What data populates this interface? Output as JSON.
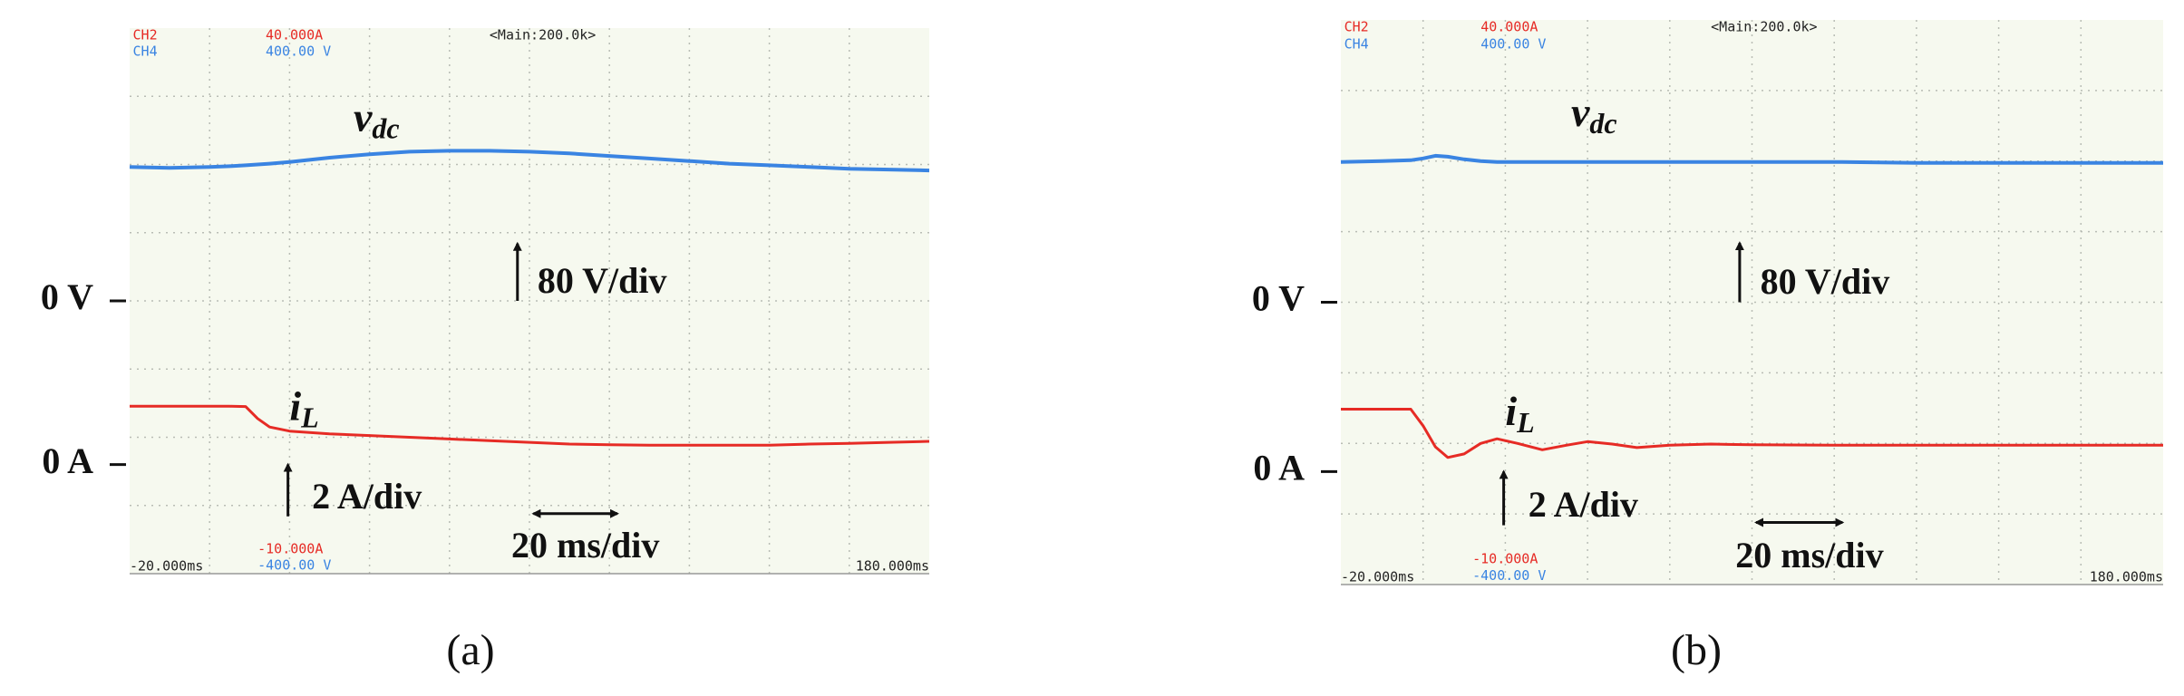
{
  "chart_data": [
    {
      "type": "line",
      "panel_label": "(a)",
      "header": {
        "ch2": "CH2",
        "ch2_scale": "40.000A",
        "ch4": "CH4",
        "ch4_scale": "400.00 V",
        "timebase": "<Main:200.0k>",
        "ch2_bottom": "-10.000A",
        "ch4_bottom": "-400.00 V"
      },
      "x": [
        -20,
        -10,
        0,
        5,
        9,
        12,
        15,
        20,
        30,
        40,
        50,
        60,
        70,
        80,
        90,
        100,
        110,
        120,
        130,
        140,
        150,
        160,
        170,
        180
      ],
      "xlim": [
        -20,
        180
      ],
      "xticks": [
        {
          "value": -20,
          "label": "-20.000ms"
        },
        {
          "value": 180,
          "label": "180.000ms"
        }
      ],
      "ylim": [
        -320,
        320
      ],
      "yticks": [
        {
          "value": 0,
          "label": "0 V"
        }
      ],
      "y2lim": [
        -3.2,
        12.8
      ],
      "y2ticks": [
        {
          "value": 0,
          "label": "0 A"
        }
      ],
      "series": [
        {
          "name": "v",
          "subscript": "dc",
          "color": "#3a84e2",
          "values": [
            157,
            156,
            157,
            158,
            159,
            160,
            161,
            163,
            168,
            172,
            175,
            176,
            176,
            175,
            173,
            170,
            167,
            164,
            161,
            159,
            157,
            155,
            154,
            153
          ]
        },
        {
          "name": "i",
          "subscript": "L",
          "color": "#e62b25",
          "axis": "y2",
          "values": [
            1.71,
            1.71,
            1.71,
            1.71,
            1.7,
            1.35,
            1.1,
            0.98,
            0.9,
            0.85,
            0.8,
            0.75,
            0.7,
            0.65,
            0.6,
            0.58,
            0.57,
            0.57,
            0.57,
            0.57,
            0.6,
            0.62,
            0.65,
            0.68
          ]
        }
      ],
      "annotations": [
        "80 V/div",
        "2 A/div",
        "20 ms/div"
      ]
    },
    {
      "type": "line",
      "panel_label": "(b)",
      "header": {
        "ch2": "CH2",
        "ch2_scale": "40.000A",
        "ch4": "CH4",
        "ch4_scale": "400.00 V",
        "timebase": "<Main:200.0k>",
        "ch2_bottom": "-10.000A",
        "ch4_bottom": "-400.00 V"
      },
      "x": [
        -20,
        -10,
        -3,
        0,
        3,
        6,
        10,
        14,
        18,
        23,
        29,
        35,
        40,
        46,
        52,
        60,
        70,
        80,
        100,
        120,
        140,
        160,
        180
      ],
      "xlim": [
        -20,
        180
      ],
      "xticks": [
        {
          "value": -20,
          "label": "-20.000ms"
        },
        {
          "value": 180,
          "label": "180.000ms"
        }
      ],
      "ylim": [
        -320,
        320
      ],
      "yticks": [
        {
          "value": 0,
          "label": "0 V"
        }
      ],
      "y2lim": [
        -3.2,
        12.8
      ],
      "y2ticks": [
        {
          "value": 0,
          "label": "0 A"
        }
      ],
      "series": [
        {
          "name": "v",
          "subscript": "dc",
          "color": "#3a84e2",
          "values": [
            159,
            160,
            161,
            163,
            166,
            165,
            162,
            160,
            159,
            159,
            159,
            159,
            159,
            159,
            159,
            159,
            159,
            159,
            159,
            158,
            158,
            158,
            158
          ]
        },
        {
          "name": "i",
          "subscript": "L",
          "color": "#e62b25",
          "axis": "y2",
          "values": [
            1.77,
            1.77,
            1.77,
            1.3,
            0.7,
            0.4,
            0.5,
            0.8,
            0.93,
            0.8,
            0.62,
            0.75,
            0.85,
            0.78,
            0.68,
            0.75,
            0.78,
            0.76,
            0.75,
            0.75,
            0.75,
            0.75,
            0.75
          ]
        }
      ],
      "annotations": [
        "80 V/div",
        "2 A/div",
        "20 ms/div"
      ]
    }
  ]
}
